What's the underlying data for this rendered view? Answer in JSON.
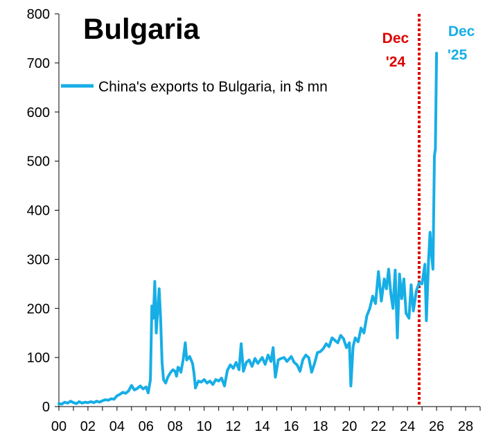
{
  "chart_data": {
    "type": "line",
    "title": "Bulgaria",
    "xlabel": "",
    "ylabel": "",
    "xlim": [
      2000,
      2029
    ],
    "ylim": [
      0,
      800
    ],
    "y_ticks": [
      0,
      100,
      200,
      300,
      400,
      500,
      600,
      700,
      800
    ],
    "x_ticks": [
      2000,
      2002,
      2004,
      2006,
      2008,
      2010,
      2012,
      2014,
      2016,
      2018,
      2020,
      2022,
      2024,
      2026,
      2028
    ],
    "x_tick_labels": [
      "00",
      "02",
      "04",
      "06",
      "08",
      "10",
      "12",
      "14",
      "16",
      "18",
      "20",
      "22",
      "24",
      "26",
      "28"
    ],
    "y_tick_labels": [
      "0",
      "100",
      "200",
      "300",
      "400",
      "500",
      "600",
      "700",
      "800"
    ],
    "grid": false,
    "legend_position": "top-left",
    "series": [
      {
        "name": "China's exports to Bulgaria, in $ mn",
        "color": "#17aee6",
        "points": [
          [
            2000.0,
            6
          ],
          [
            2000.2,
            5
          ],
          [
            2000.4,
            9
          ],
          [
            2000.6,
            7
          ],
          [
            2000.8,
            11
          ],
          [
            2001.0,
            8
          ],
          [
            2001.2,
            6
          ],
          [
            2001.4,
            10
          ],
          [
            2001.6,
            7
          ],
          [
            2001.8,
            9
          ],
          [
            2002.0,
            8
          ],
          [
            2002.2,
            10
          ],
          [
            2002.4,
            8
          ],
          [
            2002.6,
            11
          ],
          [
            2002.8,
            9
          ],
          [
            2003.0,
            12
          ],
          [
            2003.2,
            14
          ],
          [
            2003.4,
            13
          ],
          [
            2003.6,
            16
          ],
          [
            2003.8,
            15
          ],
          [
            2004.0,
            22
          ],
          [
            2004.2,
            25
          ],
          [
            2004.4,
            29
          ],
          [
            2004.6,
            27
          ],
          [
            2004.8,
            32
          ],
          [
            2005.0,
            43
          ],
          [
            2005.2,
            34
          ],
          [
            2005.4,
            37
          ],
          [
            2005.6,
            42
          ],
          [
            2005.8,
            36
          ],
          [
            2006.0,
            40
          ],
          [
            2006.15,
            28
          ],
          [
            2006.3,
            55
          ],
          [
            2006.4,
            205
          ],
          [
            2006.5,
            180
          ],
          [
            2006.6,
            255
          ],
          [
            2006.7,
            150
          ],
          [
            2006.8,
            195
          ],
          [
            2006.9,
            240
          ],
          [
            2007.0,
            180
          ],
          [
            2007.1,
            90
          ],
          [
            2007.2,
            55
          ],
          [
            2007.35,
            48
          ],
          [
            2007.5,
            60
          ],
          [
            2007.7,
            70
          ],
          [
            2007.85,
            75
          ],
          [
            2008.0,
            72
          ],
          [
            2008.1,
            62
          ],
          [
            2008.2,
            80
          ],
          [
            2008.3,
            78
          ],
          [
            2008.4,
            70
          ],
          [
            2008.55,
            95
          ],
          [
            2008.7,
            130
          ],
          [
            2008.8,
            95
          ],
          [
            2009.0,
            102
          ],
          [
            2009.2,
            88
          ],
          [
            2009.3,
            68
          ],
          [
            2009.4,
            38
          ],
          [
            2009.6,
            52
          ],
          [
            2009.8,
            50
          ],
          [
            2010.0,
            55
          ],
          [
            2010.2,
            48
          ],
          [
            2010.4,
            52
          ],
          [
            2010.6,
            45
          ],
          [
            2010.8,
            55
          ],
          [
            2011.0,
            52
          ],
          [
            2011.2,
            58
          ],
          [
            2011.4,
            42
          ],
          [
            2011.6,
            74
          ],
          [
            2011.8,
            85
          ],
          [
            2012.0,
            78
          ],
          [
            2012.2,
            90
          ],
          [
            2012.4,
            75
          ],
          [
            2012.55,
            128
          ],
          [
            2012.7,
            72
          ],
          [
            2012.9,
            90
          ],
          [
            2013.1,
            95
          ],
          [
            2013.3,
            82
          ],
          [
            2013.5,
            98
          ],
          [
            2013.7,
            88
          ],
          [
            2014.0,
            100
          ],
          [
            2014.2,
            86
          ],
          [
            2014.4,
            105
          ],
          [
            2014.6,
            92
          ],
          [
            2014.75,
            120
          ],
          [
            2014.9,
            60
          ],
          [
            2015.1,
            95
          ],
          [
            2015.3,
            98
          ],
          [
            2015.5,
            100
          ],
          [
            2015.7,
            92
          ],
          [
            2016.0,
            102
          ],
          [
            2016.2,
            90
          ],
          [
            2016.4,
            85
          ],
          [
            2016.6,
            72
          ],
          [
            2016.8,
            96
          ],
          [
            2017.0,
            105
          ],
          [
            2017.2,
            100
          ],
          [
            2017.4,
            70
          ],
          [
            2017.6,
            88
          ],
          [
            2017.8,
            110
          ],
          [
            2018.0,
            112
          ],
          [
            2018.2,
            118
          ],
          [
            2018.4,
            128
          ],
          [
            2018.6,
            122
          ],
          [
            2018.8,
            140
          ],
          [
            2019.0,
            135
          ],
          [
            2019.2,
            130
          ],
          [
            2019.4,
            145
          ],
          [
            2019.6,
            138
          ],
          [
            2019.8,
            120
          ],
          [
            2020.0,
            130
          ],
          [
            2020.1,
            42
          ],
          [
            2020.25,
            122
          ],
          [
            2020.4,
            140
          ],
          [
            2020.6,
            132
          ],
          [
            2020.8,
            160
          ],
          [
            2021.0,
            150
          ],
          [
            2021.2,
            185
          ],
          [
            2021.4,
            200
          ],
          [
            2021.6,
            225
          ],
          [
            2021.8,
            210
          ],
          [
            2022.0,
            275
          ],
          [
            2022.2,
            215
          ],
          [
            2022.4,
            260
          ],
          [
            2022.55,
            240
          ],
          [
            2022.7,
            280
          ],
          [
            2022.85,
            230
          ],
          [
            2023.0,
            200
          ],
          [
            2023.15,
            278
          ],
          [
            2023.3,
            140
          ],
          [
            2023.45,
            270
          ],
          [
            2023.6,
            220
          ],
          [
            2023.75,
            260
          ],
          [
            2023.9,
            190
          ],
          [
            2024.1,
            180
          ],
          [
            2024.25,
            248
          ],
          [
            2024.4,
            195
          ],
          [
            2024.6,
            235
          ],
          [
            2024.8,
            252
          ],
          [
            2025.0,
            250
          ],
          [
            2025.2,
            290
          ],
          [
            2025.3,
            175
          ],
          [
            2025.45,
            300
          ],
          [
            2025.55,
            355
          ],
          [
            2025.65,
            310
          ],
          [
            2025.75,
            280
          ],
          [
            2025.85,
            510
          ],
          [
            2025.92,
            525
          ],
          [
            2026.0,
            720
          ]
        ]
      }
    ],
    "annotations": [
      {
        "x": 2024.8,
        "line1": "Dec",
        "line2": "'24",
        "color": "#dd0000",
        "style": "dotted"
      },
      {
        "x": 2026.0,
        "line1": "Dec",
        "line2": "'25",
        "color": "#17aee6",
        "style": "text"
      }
    ]
  }
}
